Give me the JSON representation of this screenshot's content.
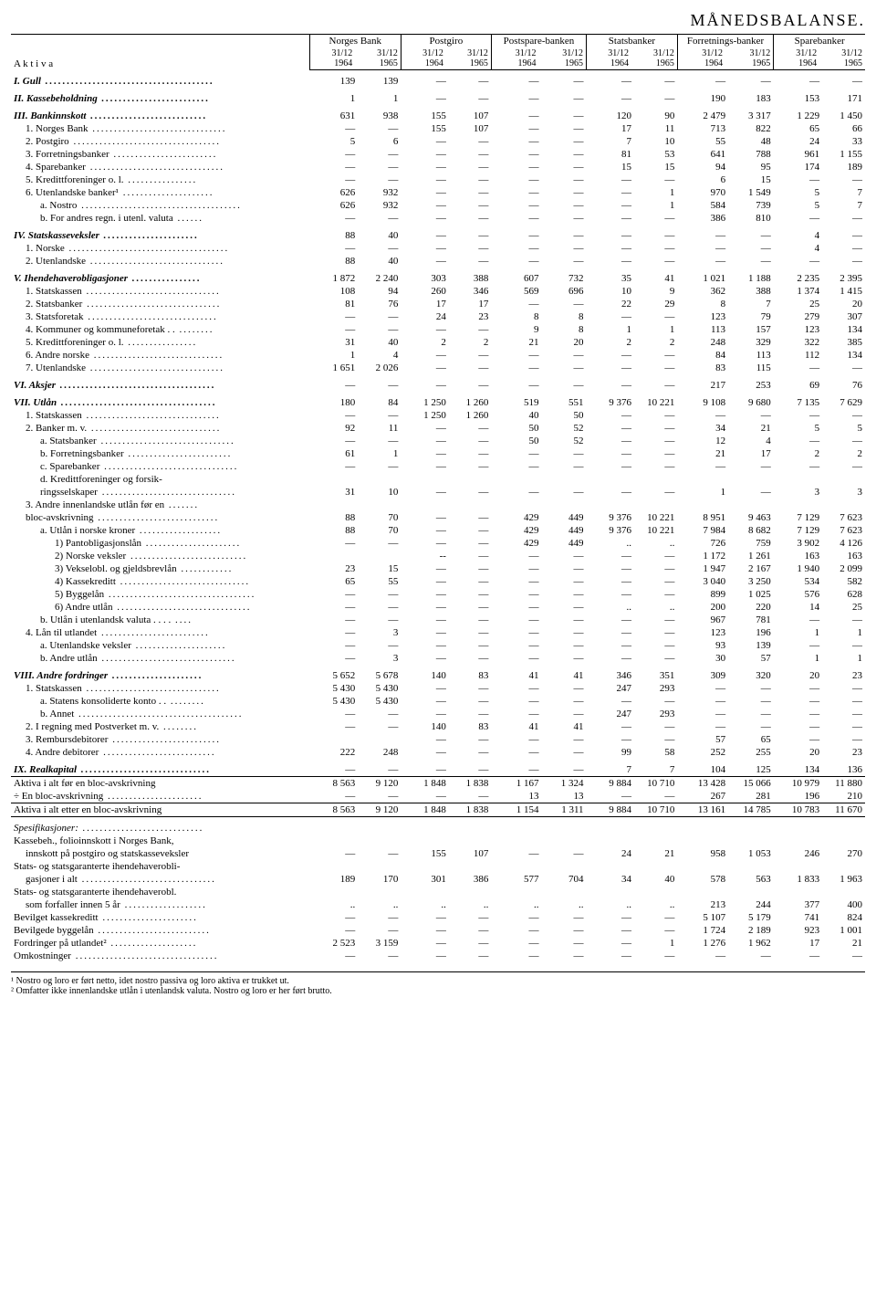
{
  "title": "MÅNEDSBALANSE.",
  "col_label": "A k t i v a",
  "groups": [
    "Norges Bank",
    "Postgiro",
    "Postspare-banken",
    "Statsbanker",
    "Forretnings-banker",
    "Sparebanker"
  ],
  "subcols": [
    "31/12 1964",
    "31/12 1965",
    "31/12 1964",
    "31/12 1965",
    "31/12 1964",
    "31/12 1965",
    "31/12 1964",
    "31/12 1965",
    "31/12 1964",
    "31/12 1965",
    "31/12 1964",
    "31/12 1965"
  ],
  "rows": [
    {
      "l": "I. Gull",
      "c": "roman it sec",
      "v": [
        "139",
        "139",
        "—",
        "—",
        "—",
        "—",
        "—",
        "—",
        "—",
        "—",
        "—",
        "—"
      ]
    },
    {
      "l": "II. Kassebeholdning",
      "c": "roman it sec",
      "v": [
        "1",
        "1",
        "—",
        "—",
        "—",
        "—",
        "—",
        "—",
        "190",
        "183",
        "153",
        "171"
      ]
    },
    {
      "l": "III. Bankinnskott",
      "c": "roman it sec",
      "v": [
        "631",
        "938",
        "155",
        "107",
        "—",
        "—",
        "120",
        "90",
        "2 479",
        "3 317",
        "1 229",
        "1 450"
      ]
    },
    {
      "l": "1. Norges Bank",
      "c": "ind1",
      "v": [
        "—",
        "—",
        "155",
        "107",
        "—",
        "—",
        "17",
        "11",
        "713",
        "822",
        "65",
        "66"
      ]
    },
    {
      "l": "2. Postgiro",
      "c": "ind1",
      "v": [
        "5",
        "6",
        "—",
        "—",
        "—",
        "—",
        "7",
        "10",
        "55",
        "48",
        "24",
        "33"
      ]
    },
    {
      "l": "3. Forretningsbanker",
      "c": "ind1",
      "v": [
        "—",
        "—",
        "—",
        "—",
        "—",
        "—",
        "81",
        "53",
        "641",
        "788",
        "961",
        "1 155"
      ]
    },
    {
      "l": "4. Sparebanker",
      "c": "ind1",
      "v": [
        "—",
        "—",
        "—",
        "—",
        "—",
        "—",
        "15",
        "15",
        "94",
        "95",
        "174",
        "189"
      ]
    },
    {
      "l": "5. Kredittforeninger o. l.",
      "c": "ind1",
      "v": [
        "—",
        "—",
        "—",
        "—",
        "—",
        "—",
        "—",
        "—",
        "6",
        "15",
        "—",
        "—"
      ]
    },
    {
      "l": "6. Utenlandske banker¹",
      "c": "ind1",
      "v": [
        "626",
        "932",
        "—",
        "—",
        "—",
        "—",
        "—",
        "1",
        "970",
        "1 549",
        "5",
        "7"
      ]
    },
    {
      "l": "a. Nostro",
      "c": "ind2",
      "v": [
        "626",
        "932",
        "—",
        "—",
        "—",
        "—",
        "—",
        "1",
        "584",
        "739",
        "5",
        "7"
      ]
    },
    {
      "l": "b. For andres regn. i utenl. valuta",
      "c": "ind2",
      "v": [
        "—",
        "—",
        "—",
        "—",
        "—",
        "—",
        "—",
        "—",
        "386",
        "810",
        "—",
        "—"
      ]
    },
    {
      "l": "IV. Statskasseveksler",
      "c": "roman it sec",
      "v": [
        "88",
        "40",
        "—",
        "—",
        "—",
        "—",
        "—",
        "—",
        "—",
        "—",
        "4",
        "—"
      ]
    },
    {
      "l": "1. Norske",
      "c": "ind1",
      "v": [
        "—",
        "—",
        "—",
        "—",
        "—",
        "—",
        "—",
        "—",
        "—",
        "—",
        "4",
        "—"
      ]
    },
    {
      "l": "2. Utenlandske",
      "c": "ind1",
      "v": [
        "88",
        "40",
        "—",
        "—",
        "—",
        "—",
        "—",
        "—",
        "—",
        "—",
        "—",
        "—"
      ]
    },
    {
      "l": "V. Ihendehaverobligasjoner",
      "c": "roman it sec",
      "v": [
        "1 872",
        "2 240",
        "303",
        "388",
        "607",
        "732",
        "35",
        "41",
        "1 021",
        "1 188",
        "2 235",
        "2 395"
      ]
    },
    {
      "l": "1. Statskassen",
      "c": "ind1",
      "v": [
        "108",
        "94",
        "260",
        "346",
        "569",
        "696",
        "10",
        "9",
        "362",
        "388",
        "1 374",
        "1 415"
      ]
    },
    {
      "l": "2. Statsbanker",
      "c": "ind1",
      "v": [
        "81",
        "76",
        "17",
        "17",
        "—",
        "—",
        "22",
        "29",
        "8",
        "7",
        "25",
        "20"
      ]
    },
    {
      "l": "3. Statsforetak",
      "c": "ind1",
      "v": [
        "—",
        "—",
        "24",
        "23",
        "8",
        "8",
        "—",
        "—",
        "123",
        "79",
        "279",
        "307"
      ]
    },
    {
      "l": "4. Kommuner og kommuneforetak . .",
      "c": "ind1",
      "v": [
        "—",
        "—",
        "—",
        "—",
        "9",
        "8",
        "1",
        "1",
        "113",
        "157",
        "123",
        "134"
      ]
    },
    {
      "l": "5. Kredittforeninger o. l.",
      "c": "ind1",
      "v": [
        "31",
        "40",
        "2",
        "2",
        "21",
        "20",
        "2",
        "2",
        "248",
        "329",
        "322",
        "385"
      ]
    },
    {
      "l": "6. Andre norske",
      "c": "ind1",
      "v": [
        "1",
        "4",
        "—",
        "—",
        "—",
        "—",
        "—",
        "—",
        "84",
        "113",
        "112",
        "134"
      ]
    },
    {
      "l": "7. Utenlandske",
      "c": "ind1",
      "v": [
        "1 651",
        "2 026",
        "—",
        "—",
        "—",
        "—",
        "—",
        "—",
        "83",
        "115",
        "—",
        "—"
      ]
    },
    {
      "l": "VI. Aksjer",
      "c": "roman it sec",
      "v": [
        "—",
        "—",
        "—",
        "—",
        "—",
        "—",
        "—",
        "—",
        "217",
        "253",
        "69",
        "76"
      ]
    },
    {
      "l": "VII. Utlån",
      "c": "roman it sec",
      "v": [
        "180",
        "84",
        "1 250",
        "1 260",
        "519",
        "551",
        "9 376",
        "10 221",
        "9 108",
        "9 680",
        "7 135",
        "7 629"
      ]
    },
    {
      "l": "1. Statskassen",
      "c": "ind1",
      "v": [
        "—",
        "—",
        "1 250",
        "1 260",
        "40",
        "50",
        "—",
        "—",
        "—",
        "—",
        "—",
        "—"
      ]
    },
    {
      "l": "2. Banker m. v.",
      "c": "ind1",
      "v": [
        "92",
        "11",
        "—",
        "—",
        "50",
        "52",
        "—",
        "—",
        "34",
        "21",
        "5",
        "5"
      ]
    },
    {
      "l": "a. Statsbanker",
      "c": "ind2",
      "v": [
        "—",
        "—",
        "—",
        "—",
        "50",
        "52",
        "—",
        "—",
        "12",
        "4",
        "—",
        "—"
      ]
    },
    {
      "l": "b. Forretningsbanker",
      "c": "ind2",
      "v": [
        "61",
        "1",
        "—",
        "—",
        "—",
        "—",
        "—",
        "—",
        "21",
        "17",
        "2",
        "2"
      ]
    },
    {
      "l": "c. Sparebanker",
      "c": "ind2",
      "v": [
        "—",
        "—",
        "—",
        "—",
        "—",
        "—",
        "—",
        "—",
        "—",
        "—",
        "—",
        "—"
      ]
    },
    {
      "l": "d. Kredittforeninger og forsik-",
      "c": "ind2",
      "v": [
        "",
        "",
        "",
        "",
        "",
        "",
        "",
        "",
        "",
        "",
        "",
        ""
      ]
    },
    {
      "l": "ringsselskaper",
      "c": "ind2",
      "v": [
        "31",
        "10",
        "—",
        "—",
        "—",
        "—",
        "—",
        "—",
        "1",
        "—",
        "3",
        "3"
      ]
    },
    {
      "l": "3. Andre innenlandske utlån før en",
      "c": "ind1",
      "v": [
        "",
        "",
        "",
        "",
        "",
        "",
        "",
        "",
        "",
        "",
        "",
        ""
      ]
    },
    {
      "l": "bloc-avskrivning",
      "c": "ind1",
      "v": [
        "88",
        "70",
        "—",
        "—",
        "429",
        "449",
        "9 376",
        "10 221",
        "8 951",
        "9 463",
        "7 129",
        "7 623"
      ]
    },
    {
      "l": "a. Utlån i norske kroner",
      "c": "ind2",
      "v": [
        "88",
        "70",
        "—",
        "—",
        "429",
        "449",
        "9 376",
        "10 221",
        "7 984",
        "8 682",
        "7 129",
        "7 623"
      ]
    },
    {
      "l": "1) Pantobligasjonslån",
      "c": "ind3",
      "v": [
        "—",
        "—",
        "—",
        "—",
        "429",
        "449",
        "..",
        "..",
        "726",
        "759",
        "3 902",
        "4 126"
      ]
    },
    {
      "l": "2) Norske veksler",
      "c": "ind3",
      "v": [
        "",
        "",
        "--",
        "—",
        "—",
        "—",
        "—",
        "—",
        "1 172",
        "1 261",
        "163",
        "163"
      ]
    },
    {
      "l": "3) Vekselobl. og gjeldsbrevlån",
      "c": "ind3",
      "v": [
        "23",
        "15",
        "—",
        "—",
        "—",
        "—",
        "—",
        "—",
        "1 947",
        "2 167",
        "1 940",
        "2 099"
      ]
    },
    {
      "l": "4) Kassekreditt",
      "c": "ind3",
      "v": [
        "65",
        "55",
        "—",
        "—",
        "—",
        "—",
        "—",
        "—",
        "3 040",
        "3 250",
        "534",
        "582"
      ]
    },
    {
      "l": "5) Byggelån",
      "c": "ind3",
      "v": [
        "—",
        "—",
        "—",
        "—",
        "—",
        "—",
        "—",
        "—",
        "899",
        "1 025",
        "576",
        "628"
      ]
    },
    {
      "l": "6) Andre utlån",
      "c": "ind3",
      "v": [
        "—",
        "—",
        "—",
        "—",
        "—",
        "—",
        "..",
        "..",
        "200",
        "220",
        "14",
        "25"
      ]
    },
    {
      "l": "b. Utlån i utenlandsk valuta . . . .",
      "c": "ind2",
      "v": [
        "—",
        "—",
        "—",
        "—",
        "—",
        "—",
        "—",
        "—",
        "967",
        "781",
        "—",
        "—"
      ]
    },
    {
      "l": "4. Lån til utlandet",
      "c": "ind1",
      "v": [
        "—",
        "3",
        "—",
        "—",
        "—",
        "—",
        "—",
        "—",
        "123",
        "196",
        "1",
        "1"
      ]
    },
    {
      "l": "a. Utenlandske veksler",
      "c": "ind2",
      "v": [
        "—",
        "—",
        "—",
        "—",
        "—",
        "—",
        "—",
        "—",
        "93",
        "139",
        "—",
        "—"
      ]
    },
    {
      "l": "b. Andre utlån",
      "c": "ind2",
      "v": [
        "—",
        "3",
        "—",
        "—",
        "—",
        "—",
        "—",
        "—",
        "30",
        "57",
        "1",
        "1"
      ]
    },
    {
      "l": "VIII. Andre fordringer",
      "c": "roman it sec",
      "v": [
        "5 652",
        "5 678",
        "140",
        "83",
        "41",
        "41",
        "346",
        "351",
        "309",
        "320",
        "20",
        "23"
      ]
    },
    {
      "l": "1. Statskassen",
      "c": "ind1",
      "v": [
        "5 430",
        "5 430",
        "—",
        "—",
        "—",
        "—",
        "247",
        "293",
        "—",
        "—",
        "—",
        "—"
      ]
    },
    {
      "l": "a. Statens konsoliderte konto . .",
      "c": "ind2",
      "v": [
        "5 430",
        "5 430",
        "—",
        "—",
        "—",
        "—",
        "—",
        "—",
        "—",
        "—",
        "—",
        "—"
      ]
    },
    {
      "l": "b. Annet",
      "c": "ind2",
      "v": [
        "—",
        "—",
        "—",
        "—",
        "—",
        "—",
        "247",
        "293",
        "—",
        "—",
        "—",
        "—"
      ]
    },
    {
      "l": "2. I regning med Postverket m. v.",
      "c": "ind1",
      "v": [
        "—",
        "—",
        "140",
        "83",
        "41",
        "41",
        "—",
        "—",
        "—",
        "—",
        "—",
        "—"
      ]
    },
    {
      "l": "3. Rembursdebitorer",
      "c": "ind1",
      "v": [
        "",
        "",
        "—",
        "—",
        "—",
        "—",
        "—",
        "—",
        "57",
        "65",
        "—",
        "—"
      ]
    },
    {
      "l": "4. Andre debitorer",
      "c": "ind1",
      "v": [
        "222",
        "248",
        "—",
        "—",
        "—",
        "—",
        "99",
        "58",
        "252",
        "255",
        "20",
        "23"
      ]
    },
    {
      "l": "IX. Realkapital",
      "c": "roman it sec",
      "v": [
        "—",
        "—",
        "—",
        "—",
        "—",
        "—",
        "7",
        "7",
        "104",
        "125",
        "134",
        "136"
      ]
    },
    {
      "l": "Aktiva i alt før en bloc-avskrivning",
      "c": "hr",
      "v": [
        "8 563",
        "9 120",
        "1 848",
        "1 838",
        "1 167",
        "1 324",
        "9 884",
        "10 710",
        "13 428",
        "15 066",
        "10 979",
        "11 880"
      ]
    },
    {
      "l": "÷ En bloc-avskrivning",
      "c": "",
      "v": [
        "—",
        "—",
        "—",
        "—",
        "13",
        "13",
        "—",
        "—",
        "267",
        "281",
        "196",
        "210"
      ]
    },
    {
      "l": "Aktiva i alt etter en bloc-avskrivning",
      "c": "hr2",
      "v": [
        "8 563",
        "9 120",
        "1 848",
        "1 838",
        "1 154",
        "1 311",
        "9 884",
        "10 710",
        "13 161",
        "14 785",
        "10 783",
        "11 670"
      ]
    },
    {
      "l": "Spesifikasjoner:",
      "c": "it sec",
      "v": [
        "",
        "",
        "",
        "",
        "",
        "",
        "",
        "",
        "",
        "",
        "",
        ""
      ]
    },
    {
      "l": "Kassebeh., folioinnskott i Norges Bank,",
      "c": "",
      "v": [
        "",
        "",
        "",
        "",
        "",
        "",
        "",
        "",
        "",
        "",
        "",
        ""
      ]
    },
    {
      "l": "innskott på postgiro og statskasseveksler",
      "c": "ind1",
      "v": [
        "—",
        "—",
        "155",
        "107",
        "—",
        "—",
        "24",
        "21",
        "958",
        "1 053",
        "246",
        "270"
      ]
    },
    {
      "l": "Stats- og statsgaranterte ihendehaverobli-",
      "c": "",
      "v": [
        "",
        "",
        "",
        "",
        "",
        "",
        "",
        "",
        "",
        "",
        "",
        ""
      ]
    },
    {
      "l": "gasjoner i alt",
      "c": "ind1",
      "v": [
        "189",
        "170",
        "301",
        "386",
        "577",
        "704",
        "34",
        "40",
        "578",
        "563",
        "1 833",
        "1 963"
      ]
    },
    {
      "l": "Stats- og statsgaranterte ihendehaverobl.",
      "c": "",
      "v": [
        "",
        "",
        "",
        "",
        "",
        "",
        "",
        "",
        "",
        "",
        "",
        ""
      ]
    },
    {
      "l": "som forfaller innen 5 år",
      "c": "ind1",
      "v": [
        "..",
        "..",
        "..",
        "..",
        "..",
        "..",
        "..",
        "..",
        "213",
        "244",
        "377",
        "400"
      ]
    },
    {
      "l": "Bevilget kassekreditt",
      "c": "",
      "v": [
        "—",
        "—",
        "—",
        "—",
        "—",
        "—",
        "—",
        "—",
        "5 107",
        "5 179",
        "741",
        "824"
      ]
    },
    {
      "l": "Bevilgede byggelån",
      "c": "",
      "v": [
        "—",
        "—",
        "—",
        "—",
        "—",
        "—",
        "—",
        "—",
        "1 724",
        "2 189",
        "923",
        "1 001"
      ]
    },
    {
      "l": "Fordringer på utlandet²",
      "c": "",
      "v": [
        "2 523",
        "3 159",
        "—",
        "—",
        "—",
        "—",
        "—",
        "1",
        "1 276",
        "1 962",
        "17",
        "21"
      ]
    },
    {
      "l": "Omkostninger",
      "c": "",
      "v": [
        "—",
        "—",
        "—",
        "—",
        "—",
        "—",
        "—",
        "—",
        "—",
        "—",
        "—",
        "—"
      ]
    }
  ],
  "footnotes": [
    "¹ Nostro og loro er ført netto, idet nostro passiva og loro aktiva er trukket ut.",
    "² Omfatter ikke innenlandske utlån i utenlandsk valuta. Nostro og loro er her ført brutto."
  ]
}
